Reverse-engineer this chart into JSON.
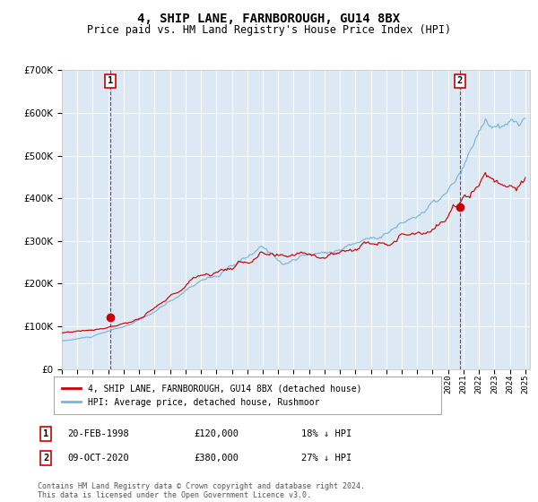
{
  "title": "4, SHIP LANE, FARNBOROUGH, GU14 8BX",
  "subtitle": "Price paid vs. HM Land Registry's House Price Index (HPI)",
  "title_fontsize": 10,
  "subtitle_fontsize": 8.5,
  "legend_label_red": "4, SHIP LANE, FARNBOROUGH, GU14 8BX (detached house)",
  "legend_label_blue": "HPI: Average price, detached house, Rushmoor",
  "annotation1_date": "20-FEB-1998",
  "annotation1_price": "£120,000",
  "annotation1_hpi": "18% ↓ HPI",
  "annotation2_date": "09-OCT-2020",
  "annotation2_price": "£380,000",
  "annotation2_hpi": "27% ↓ HPI",
  "footnote": "Contains HM Land Registry data © Crown copyright and database right 2024.\nThis data is licensed under the Open Government Licence v3.0.",
  "ylim_max": 700000,
  "plot_bg_color": "#dce9f5",
  "red_color": "#cc0000",
  "blue_color": "#7ab4d8",
  "grid_color": "#ffffff",
  "sale1_year": 1998.13,
  "sale1_price": 120000,
  "sale2_year": 2020.77,
  "sale2_price": 380000,
  "hpi_seed": 10,
  "red_seed": 77
}
